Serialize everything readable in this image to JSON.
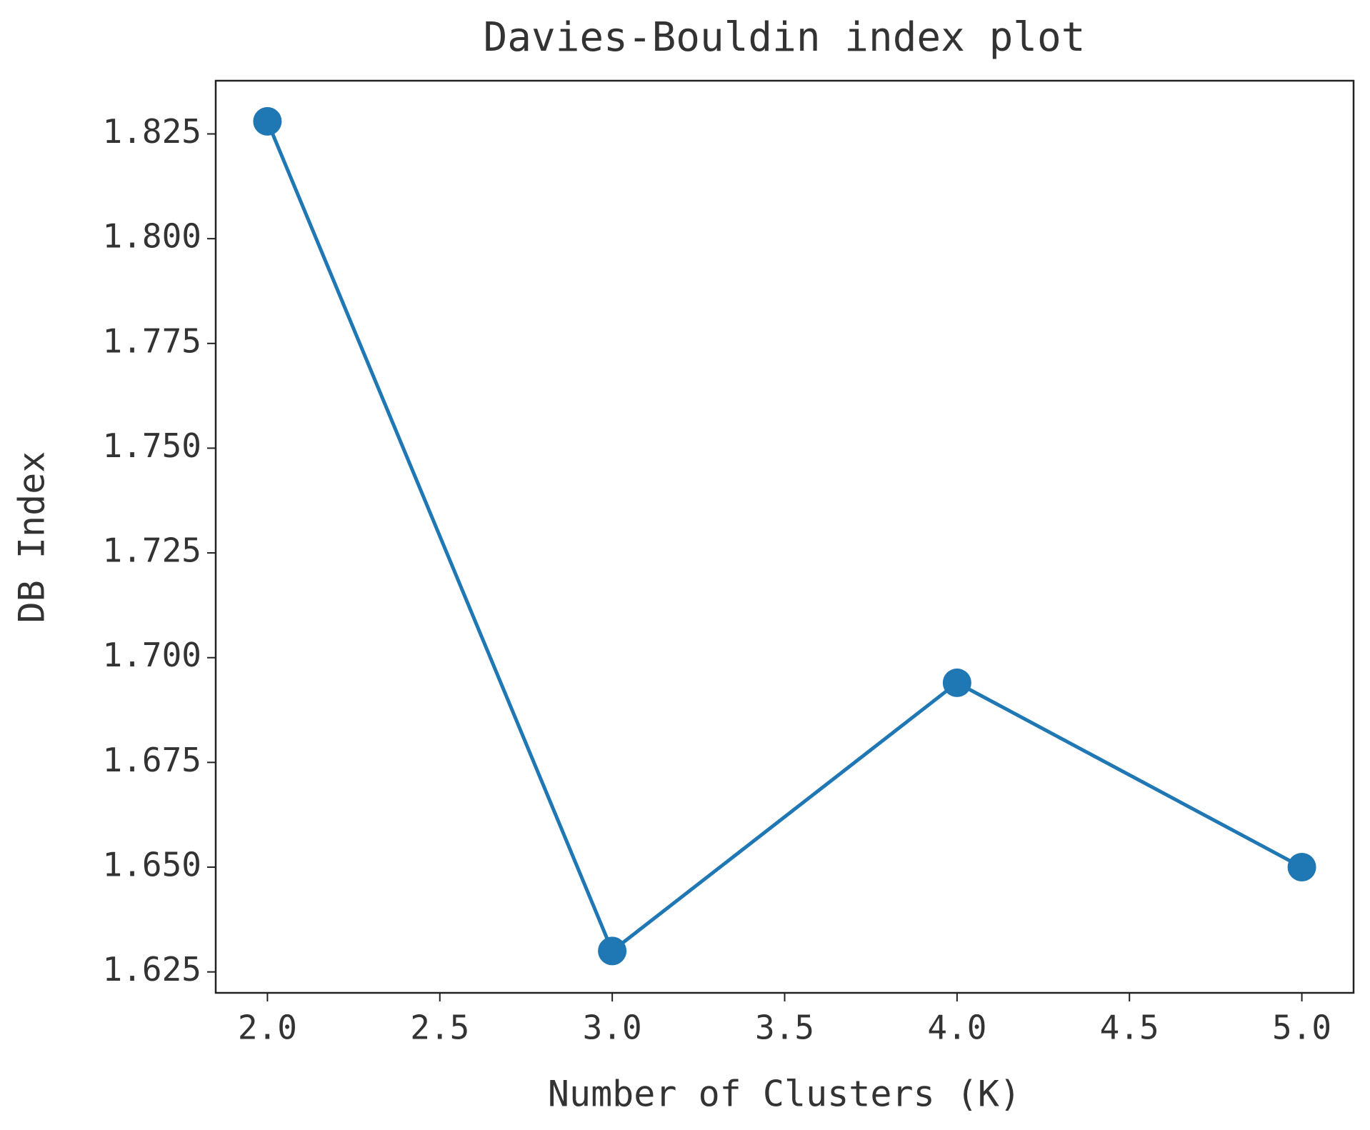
{
  "chart_data": {
    "type": "line",
    "title": "Davies-Bouldin index plot",
    "x_label": "Number of Clusters (K)",
    "y_label": "DB Index",
    "x": [
      2,
      3,
      4,
      5
    ],
    "series": [
      {
        "color": "#1f77b4",
        "values": [
          1.828,
          1.63,
          1.694,
          1.65
        ]
      }
    ],
    "xlim": [
      1.85,
      5.15
    ],
    "xticks": [
      {
        "value": 2,
        "label": "2.0"
      },
      {
        "value": 2.5,
        "label": "2.5"
      },
      {
        "value": 3,
        "label": "3.0"
      },
      {
        "value": 3.5,
        "label": "3.5"
      },
      {
        "value": 4,
        "label": "4.0"
      },
      {
        "value": 4.5,
        "label": "4.5"
      },
      {
        "value": 5,
        "label": "5.0"
      }
    ],
    "ylim": [
      1.62,
      1.8377
    ],
    "yticks": [
      {
        "value": 1.625,
        "label": "1.625"
      },
      {
        "value": 1.65,
        "label": "1.650"
      },
      {
        "value": 1.675,
        "label": "1.675"
      },
      {
        "value": 1.7,
        "label": "1.700"
      },
      {
        "value": 1.725,
        "label": "1.725"
      },
      {
        "value": 1.75,
        "label": "1.750"
      },
      {
        "value": 1.775,
        "label": "1.775"
      },
      {
        "value": 1.8,
        "label": "1.800"
      },
      {
        "value": 1.825,
        "label": "1.825"
      }
    ],
    "grid": false
  }
}
